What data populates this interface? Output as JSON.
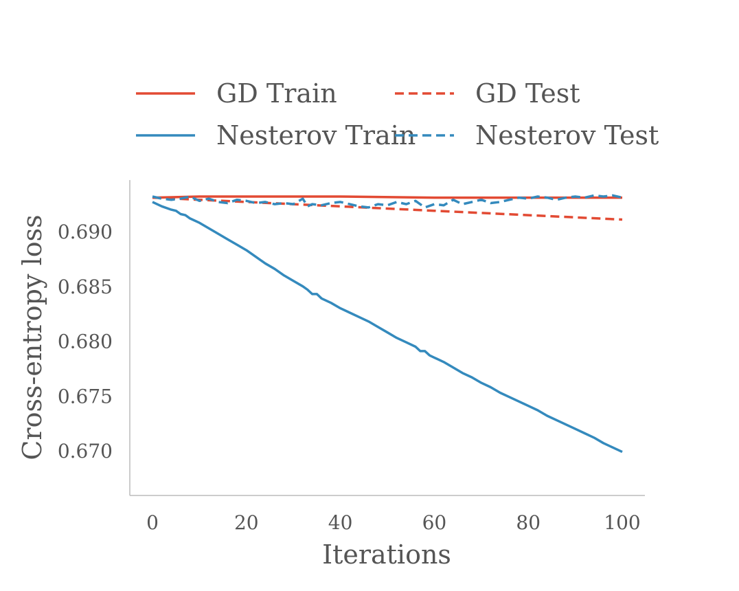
{
  "chart_data": {
    "type": "line",
    "xlabel": "Iterations",
    "ylabel": "Cross-entropy loss",
    "xlim": [
      -5,
      104
    ],
    "ylim": [
      0.6665,
      0.6937
    ],
    "x_ticks": [
      0,
      20,
      40,
      60,
      80,
      100
    ],
    "x_tick_labels": [
      "0",
      "20",
      "40",
      "60",
      "80",
      "100"
    ],
    "y_ticks": [
      0.69,
      0.685,
      0.68,
      0.675,
      0.67
    ],
    "y_tick_labels": [
      "0.690",
      "0.685",
      "0.680",
      "0.675",
      "0.670"
    ],
    "grid": false,
    "legend": {
      "position": "top",
      "columns": 2
    },
    "series": [
      {
        "name": "GD Train",
        "color": "#E24A33",
        "style": "solid",
        "points": [
          [
            0,
            0.6931
          ],
          [
            10,
            0.6932
          ],
          [
            20,
            0.6932
          ],
          [
            40,
            0.6932
          ],
          [
            60,
            0.6931
          ],
          [
            80,
            0.6931
          ],
          [
            100,
            0.6931
          ]
        ]
      },
      {
        "name": "Nesterov Train",
        "color": "#348ABD",
        "style": "solid",
        "points": [
          [
            0,
            0.6927
          ],
          [
            2,
            0.6923
          ],
          [
            4,
            0.692
          ],
          [
            5,
            0.6919
          ],
          [
            6,
            0.6916
          ],
          [
            7,
            0.6915
          ],
          [
            8,
            0.6912
          ],
          [
            10,
            0.6908
          ],
          [
            12,
            0.6903
          ],
          [
            14,
            0.6898
          ],
          [
            16,
            0.6893
          ],
          [
            18,
            0.6888
          ],
          [
            20,
            0.6883
          ],
          [
            22,
            0.6877
          ],
          [
            24,
            0.6871
          ],
          [
            26,
            0.6866
          ],
          [
            28,
            0.686
          ],
          [
            30,
            0.6855
          ],
          [
            32,
            0.685
          ],
          [
            33,
            0.6847
          ],
          [
            34,
            0.6843
          ],
          [
            35,
            0.6843
          ],
          [
            36,
            0.6839
          ],
          [
            38,
            0.6835
          ],
          [
            40,
            0.683
          ],
          [
            42,
            0.6826
          ],
          [
            44,
            0.6822
          ],
          [
            46,
            0.6818
          ],
          [
            48,
            0.6813
          ],
          [
            50,
            0.6808
          ],
          [
            52,
            0.6803
          ],
          [
            54,
            0.6799
          ],
          [
            56,
            0.6795
          ],
          [
            57,
            0.6791
          ],
          [
            58,
            0.6791
          ],
          [
            59,
            0.6787
          ],
          [
            60,
            0.6785
          ],
          [
            62,
            0.6781
          ],
          [
            64,
            0.6776
          ],
          [
            66,
            0.6771
          ],
          [
            68,
            0.6767
          ],
          [
            70,
            0.6762
          ],
          [
            72,
            0.6758
          ],
          [
            74,
            0.6753
          ],
          [
            76,
            0.6749
          ],
          [
            78,
            0.6745
          ],
          [
            80,
            0.6741
          ],
          [
            82,
            0.6737
          ],
          [
            84,
            0.6732
          ],
          [
            86,
            0.6728
          ],
          [
            88,
            0.6724
          ],
          [
            90,
            0.672
          ],
          [
            92,
            0.6716
          ],
          [
            94,
            0.6712
          ],
          [
            96,
            0.6707
          ],
          [
            98,
            0.6703
          ],
          [
            100,
            0.6699
          ]
        ]
      },
      {
        "name": "GD Test",
        "color": "#E24A33",
        "style": "dashed",
        "points": [
          [
            0,
            0.6931
          ],
          [
            10,
            0.6929
          ],
          [
            20,
            0.6927
          ],
          [
            30,
            0.6925
          ],
          [
            40,
            0.6923
          ],
          [
            50,
            0.6921
          ],
          [
            60,
            0.6919
          ],
          [
            70,
            0.6917
          ],
          [
            80,
            0.6915
          ],
          [
            90,
            0.6913
          ],
          [
            100,
            0.6911
          ]
        ]
      },
      {
        "name": "Nesterov Test",
        "color": "#348ABD",
        "style": "dashed",
        "points": [
          [
            0,
            0.6932
          ],
          [
            2,
            0.693
          ],
          [
            4,
            0.6929
          ],
          [
            6,
            0.693
          ],
          [
            8,
            0.6932
          ],
          [
            10,
            0.6928
          ],
          [
            12,
            0.693
          ],
          [
            14,
            0.6927
          ],
          [
            16,
            0.6926
          ],
          [
            18,
            0.6929
          ],
          [
            20,
            0.6928
          ],
          [
            22,
            0.6926
          ],
          [
            24,
            0.6927
          ],
          [
            26,
            0.6925
          ],
          [
            28,
            0.6926
          ],
          [
            30,
            0.6925
          ],
          [
            32,
            0.693
          ],
          [
            33,
            0.6923
          ],
          [
            34,
            0.6925
          ],
          [
            36,
            0.6924
          ],
          [
            38,
            0.6926
          ],
          [
            40,
            0.6927
          ],
          [
            42,
            0.6925
          ],
          [
            44,
            0.6923
          ],
          [
            46,
            0.6922
          ],
          [
            48,
            0.6925
          ],
          [
            50,
            0.6924
          ],
          [
            52,
            0.6927
          ],
          [
            54,
            0.6925
          ],
          [
            56,
            0.6928
          ],
          [
            58,
            0.6922
          ],
          [
            60,
            0.6925
          ],
          [
            62,
            0.6924
          ],
          [
            64,
            0.6929
          ],
          [
            66,
            0.6925
          ],
          [
            68,
            0.6927
          ],
          [
            70,
            0.6929
          ],
          [
            72,
            0.6926
          ],
          [
            74,
            0.6927
          ],
          [
            76,
            0.6929
          ],
          [
            78,
            0.6931
          ],
          [
            80,
            0.693
          ],
          [
            82,
            0.6932
          ],
          [
            84,
            0.6931
          ],
          [
            86,
            0.6929
          ],
          [
            88,
            0.6931
          ],
          [
            90,
            0.6932
          ],
          [
            92,
            0.6931
          ],
          [
            94,
            0.6933
          ],
          [
            96,
            0.6932
          ],
          [
            98,
            0.6933
          ],
          [
            100,
            0.6931
          ]
        ]
      }
    ]
  }
}
